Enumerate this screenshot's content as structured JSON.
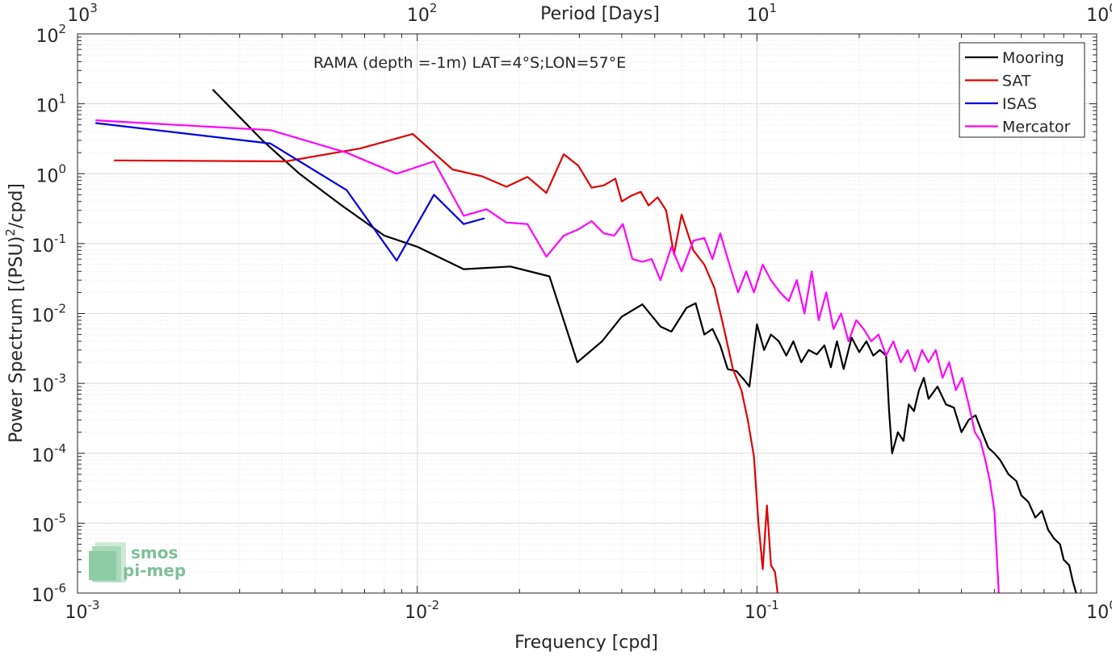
{
  "chart_data": {
    "type": "line",
    "xscale": "log",
    "yscale": "log",
    "xlim": [
      0.001,
      1
    ],
    "ylim": [
      1e-06,
      100
    ],
    "xlabel": "Frequency [cpd]",
    "ylabel_parts": [
      "Power Spectrum [(PSU)",
      "2",
      "/cpd]"
    ],
    "top_axis_label": "Period [Days]",
    "annotation": "RAMA (depth =-1m) LAT=4°S;LON=57°E",
    "grid": true,
    "legend_position": "top-right",
    "x_ticks": [
      {
        "value": 0.001,
        "base": "10",
        "exp": "-3"
      },
      {
        "value": 0.01,
        "base": "10",
        "exp": "-2"
      },
      {
        "value": 0.1,
        "base": "10",
        "exp": "-1"
      },
      {
        "value": 1,
        "base": "10",
        "exp": "0"
      }
    ],
    "top_ticks": [
      {
        "value": 0.001,
        "base": "10",
        "exp": "3"
      },
      {
        "value": 0.01,
        "base": "10",
        "exp": "2"
      },
      {
        "value": 0.1,
        "base": "10",
        "exp": "1"
      },
      {
        "value": 1,
        "base": "10",
        "exp": "0"
      }
    ],
    "y_ticks": [
      {
        "value": 1e-06,
        "base": "10",
        "exp": "-6"
      },
      {
        "value": 1e-05,
        "base": "10",
        "exp": "-5"
      },
      {
        "value": 0.0001,
        "base": "10",
        "exp": "-4"
      },
      {
        "value": 0.001,
        "base": "10",
        "exp": "-3"
      },
      {
        "value": 0.01,
        "base": "10",
        "exp": "-2"
      },
      {
        "value": 0.1,
        "base": "10",
        "exp": "-1"
      },
      {
        "value": 1,
        "base": "10",
        "exp": "0"
      },
      {
        "value": 10,
        "base": "10",
        "exp": "1"
      },
      {
        "value": 100,
        "base": "10",
        "exp": "2"
      }
    ],
    "series": [
      {
        "name": "Mooring",
        "color": "#000000",
        "points": [
          [
            0.0025,
            16
          ],
          [
            0.0035,
            3.0
          ],
          [
            0.0045,
            1.0
          ],
          [
            0.006,
            0.35
          ],
          [
            0.008,
            0.13
          ],
          [
            0.01,
            0.09
          ],
          [
            0.0137,
            0.043
          ],
          [
            0.0188,
            0.047
          ],
          [
            0.0245,
            0.034
          ],
          [
            0.0296,
            0.002
          ],
          [
            0.035,
            0.004
          ],
          [
            0.04,
            0.009
          ],
          [
            0.046,
            0.0135
          ],
          [
            0.052,
            0.0065
          ],
          [
            0.056,
            0.0055
          ],
          [
            0.062,
            0.012
          ],
          [
            0.066,
            0.014
          ],
          [
            0.07,
            0.005
          ],
          [
            0.074,
            0.006
          ],
          [
            0.078,
            0.0035
          ],
          [
            0.082,
            0.0016
          ],
          [
            0.087,
            0.0015
          ],
          [
            0.092,
            0.0011
          ],
          [
            0.095,
            0.0009
          ],
          [
            0.1,
            0.007
          ],
          [
            0.105,
            0.003
          ],
          [
            0.11,
            0.005
          ],
          [
            0.116,
            0.004
          ],
          [
            0.122,
            0.0025
          ],
          [
            0.128,
            0.004
          ],
          [
            0.135,
            0.002
          ],
          [
            0.142,
            0.003
          ],
          [
            0.15,
            0.0026
          ],
          [
            0.158,
            0.0035
          ],
          [
            0.165,
            0.0017
          ],
          [
            0.172,
            0.004
          ],
          [
            0.18,
            0.0016
          ],
          [
            0.19,
            0.0045
          ],
          [
            0.2,
            0.0028
          ],
          [
            0.21,
            0.004
          ],
          [
            0.22,
            0.0025
          ],
          [
            0.23,
            0.003
          ],
          [
            0.24,
            0.0025
          ],
          [
            0.245,
            0.0004
          ],
          [
            0.25,
            0.0001
          ],
          [
            0.26,
            0.0002
          ],
          [
            0.27,
            0.00015
          ],
          [
            0.28,
            0.0005
          ],
          [
            0.29,
            0.0004
          ],
          [
            0.3,
            0.0008
          ],
          [
            0.31,
            0.0012
          ],
          [
            0.32,
            0.0006
          ],
          [
            0.34,
            0.0009
          ],
          [
            0.36,
            0.0005
          ],
          [
            0.38,
            0.00045
          ],
          [
            0.4,
            0.0002
          ],
          [
            0.42,
            0.0003
          ],
          [
            0.44,
            0.00035
          ],
          [
            0.46,
            0.0002
          ],
          [
            0.48,
            0.00012
          ],
          [
            0.5,
            0.0001
          ],
          [
            0.52,
            8e-05
          ],
          [
            0.55,
            5e-05
          ],
          [
            0.58,
            4e-05
          ],
          [
            0.6,
            2.5e-05
          ],
          [
            0.63,
            2e-05
          ],
          [
            0.66,
            1.2e-05
          ],
          [
            0.69,
            1.5e-05
          ],
          [
            0.72,
            8e-06
          ],
          [
            0.75,
            6e-06
          ],
          [
            0.78,
            5e-06
          ],
          [
            0.8,
            3e-06
          ],
          [
            0.83,
            2.5e-06
          ],
          [
            0.85,
            1.5e-06
          ],
          [
            0.87,
            1e-06
          ]
        ]
      },
      {
        "name": "SAT",
        "color": "#e00000",
        "points": [
          [
            0.00128,
            1.55
          ],
          [
            0.0041,
            1.5
          ],
          [
            0.0068,
            2.3
          ],
          [
            0.0097,
            3.7
          ],
          [
            0.0127,
            1.15
          ],
          [
            0.0155,
            0.92
          ],
          [
            0.0183,
            0.65
          ],
          [
            0.0211,
            0.9
          ],
          [
            0.024,
            0.53
          ],
          [
            0.027,
            1.9
          ],
          [
            0.0298,
            1.3
          ],
          [
            0.0326,
            0.63
          ],
          [
            0.0354,
            0.68
          ],
          [
            0.0383,
            0.85
          ],
          [
            0.04,
            0.4
          ],
          [
            0.0425,
            0.48
          ],
          [
            0.0455,
            0.55
          ],
          [
            0.048,
            0.35
          ],
          [
            0.051,
            0.46
          ],
          [
            0.054,
            0.3
          ],
          [
            0.057,
            0.07
          ],
          [
            0.06,
            0.26
          ],
          [
            0.065,
            0.08
          ],
          [
            0.07,
            0.05
          ],
          [
            0.075,
            0.023
          ],
          [
            0.08,
            0.006
          ],
          [
            0.085,
            0.0016
          ],
          [
            0.09,
            0.0008
          ],
          [
            0.094,
            0.0003
          ],
          [
            0.098,
            9e-05
          ],
          [
            0.101,
            1e-05
          ],
          [
            0.104,
            2.2e-06
          ],
          [
            0.107,
            1.8e-05
          ],
          [
            0.11,
            2.5e-06
          ],
          [
            0.113,
            2e-06
          ],
          [
            0.115,
            1e-06
          ]
        ]
      },
      {
        "name": "ISAS",
        "color": "#0000e0",
        "points": [
          [
            0.00113,
            5.3
          ],
          [
            0.0037,
            2.7
          ],
          [
            0.0062,
            0.58
          ],
          [
            0.0087,
            0.057
          ],
          [
            0.0112,
            0.5
          ],
          [
            0.0137,
            0.19
          ],
          [
            0.0158,
            0.23
          ]
        ]
      },
      {
        "name": "Mercator",
        "color": "#ff00ff",
        "points": [
          [
            0.00113,
            5.8
          ],
          [
            0.0037,
            4.2
          ],
          [
            0.0062,
            2.0
          ],
          [
            0.0087,
            1.0
          ],
          [
            0.0112,
            1.5
          ],
          [
            0.0137,
            0.25
          ],
          [
            0.016,
            0.31
          ],
          [
            0.0183,
            0.2
          ],
          [
            0.0211,
            0.19
          ],
          [
            0.024,
            0.065
          ],
          [
            0.027,
            0.13
          ],
          [
            0.0298,
            0.16
          ],
          [
            0.0326,
            0.21
          ],
          [
            0.0354,
            0.14
          ],
          [
            0.038,
            0.13
          ],
          [
            0.0403,
            0.19
          ],
          [
            0.043,
            0.06
          ],
          [
            0.046,
            0.055
          ],
          [
            0.049,
            0.06
          ],
          [
            0.052,
            0.03
          ],
          [
            0.056,
            0.09
          ],
          [
            0.06,
            0.04
          ],
          [
            0.065,
            0.11
          ],
          [
            0.07,
            0.12
          ],
          [
            0.074,
            0.06
          ],
          [
            0.078,
            0.14
          ],
          [
            0.083,
            0.05
          ],
          [
            0.088,
            0.02
          ],
          [
            0.093,
            0.04
          ],
          [
            0.098,
            0.02
          ],
          [
            0.104,
            0.05
          ],
          [
            0.11,
            0.03
          ],
          [
            0.117,
            0.02
          ],
          [
            0.124,
            0.015
          ],
          [
            0.131,
            0.03
          ],
          [
            0.138,
            0.01
          ],
          [
            0.145,
            0.04
          ],
          [
            0.152,
            0.008
          ],
          [
            0.16,
            0.02
          ],
          [
            0.168,
            0.006
          ],
          [
            0.177,
            0.01
          ],
          [
            0.186,
            0.004
          ],
          [
            0.196,
            0.008
          ],
          [
            0.206,
            0.006
          ],
          [
            0.217,
            0.004
          ],
          [
            0.228,
            0.005
          ],
          [
            0.24,
            0.0025
          ],
          [
            0.252,
            0.004
          ],
          [
            0.265,
            0.002
          ],
          [
            0.278,
            0.003
          ],
          [
            0.292,
            0.0015
          ],
          [
            0.306,
            0.003
          ],
          [
            0.32,
            0.002
          ],
          [
            0.336,
            0.003
          ],
          [
            0.352,
            0.0012
          ],
          [
            0.368,
            0.002
          ],
          [
            0.385,
            0.0008
          ],
          [
            0.402,
            0.0012
          ],
          [
            0.42,
            0.0005
          ],
          [
            0.438,
            0.0002
          ],
          [
            0.455,
            0.00015
          ],
          [
            0.47,
            8e-05
          ],
          [
            0.485,
            4e-05
          ],
          [
            0.5,
            1.5e-05
          ],
          [
            0.515,
            1e-06
          ]
        ]
      }
    ]
  },
  "logo": {
    "line1": "smos",
    "line2": "pi-mep",
    "color": "#7fbf9a"
  }
}
